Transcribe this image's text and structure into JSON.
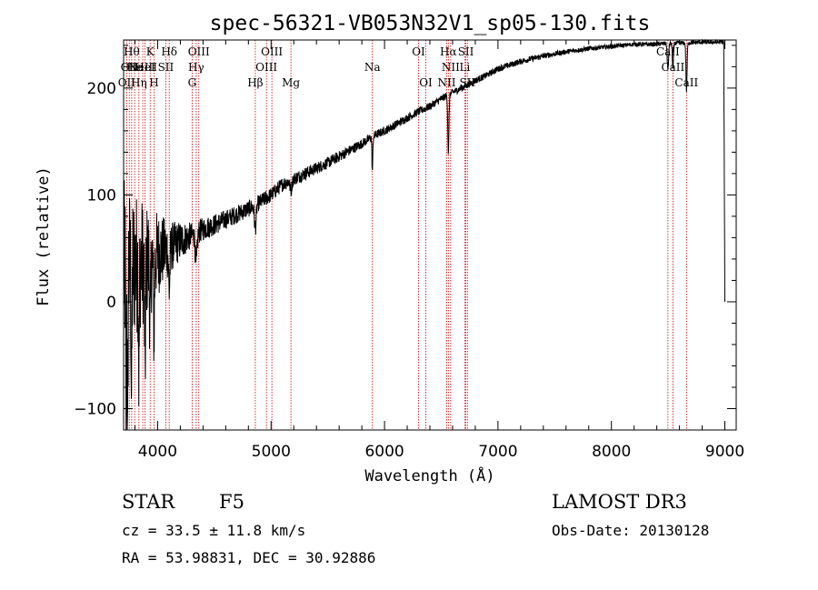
{
  "chart_data": {
    "type": "line",
    "title": "spec-56321-VB053N32V1_sp05-130.fits",
    "xlabel": "Wavelength (Å)",
    "ylabel": "Flux (relative)",
    "xlim": [
      3700,
      9100
    ],
    "ylim": [
      -120,
      245
    ],
    "x_ticks": [
      4000,
      5000,
      6000,
      7000,
      8000,
      9000
    ],
    "x_tick_labels": [
      "4000",
      "5000",
      "6000",
      "7000",
      "8000",
      "9000"
    ],
    "y_ticks": [
      -100,
      0,
      100,
      200
    ],
    "y_tick_labels": [
      "−100",
      "0",
      "100",
      "200"
    ],
    "continuum": [
      [
        3700,
        30
      ],
      [
        3800,
        35
      ],
      [
        3900,
        38
      ],
      [
        4000,
        45
      ],
      [
        4100,
        50
      ],
      [
        4200,
        57
      ],
      [
        4300,
        62
      ],
      [
        4400,
        68
      ],
      [
        4500,
        72
      ],
      [
        4600,
        77
      ],
      [
        4700,
        82
      ],
      [
        4800,
        87
      ],
      [
        4900,
        93
      ],
      [
        5000,
        100
      ],
      [
        5100,
        110
      ],
      [
        5200,
        115
      ],
      [
        5300,
        120
      ],
      [
        5400,
        125
      ],
      [
        5500,
        130
      ],
      [
        5600,
        136
      ],
      [
        5700,
        142
      ],
      [
        5800,
        148
      ],
      [
        5900,
        155
      ],
      [
        6000,
        160
      ],
      [
        6100,
        166
      ],
      [
        6200,
        172
      ],
      [
        6300,
        178
      ],
      [
        6400,
        183
      ],
      [
        6500,
        190
      ],
      [
        6600,
        196
      ],
      [
        6700,
        201
      ],
      [
        6800,
        207
      ],
      [
        6900,
        212
      ],
      [
        7000,
        218
      ],
      [
        7200,
        225
      ],
      [
        7400,
        230
      ],
      [
        7600,
        234
      ],
      [
        7800,
        237
      ],
      [
        8000,
        239
      ],
      [
        8200,
        241
      ],
      [
        8400,
        241
      ],
      [
        8500,
        242
      ],
      [
        8600,
        242
      ],
      [
        8800,
        243
      ],
      [
        8980,
        243
      ]
    ],
    "noise": [
      [
        3700,
        85
      ],
      [
        3900,
        55
      ],
      [
        4100,
        25
      ],
      [
        4300,
        12
      ],
      [
        4600,
        9
      ],
      [
        5000,
        7
      ],
      [
        6000,
        4
      ],
      [
        7000,
        3
      ],
      [
        8000,
        2
      ],
      [
        9000,
        2
      ]
    ],
    "absorption_features": [
      {
        "center": 3722,
        "depth": 180,
        "width": 3
      },
      {
        "center": 3735,
        "depth": 200,
        "width": 3
      },
      {
        "center": 3770,
        "depth": 120,
        "width": 4
      },
      {
        "center": 3835,
        "depth": 100,
        "width": 4
      },
      {
        "center": 3889,
        "depth": 90,
        "width": 5
      },
      {
        "center": 3934,
        "depth": 70,
        "width": 5
      },
      {
        "center": 3968,
        "depth": 70,
        "width": 5
      },
      {
        "center": 4102,
        "depth": 40,
        "width": 6
      },
      {
        "center": 4340,
        "depth": 30,
        "width": 8
      },
      {
        "center": 4861,
        "depth": 22,
        "width": 8
      },
      {
        "center": 5175,
        "depth": 10,
        "width": 8
      },
      {
        "center": 5893,
        "depth": 32,
        "width": 4
      },
      {
        "center": 6563,
        "depth": 55,
        "width": 5
      },
      {
        "center": 8498,
        "depth": 25,
        "width": 6
      },
      {
        "center": 8542,
        "depth": 25,
        "width": 5
      },
      {
        "center": 8662,
        "depth": 45,
        "width": 5
      }
    ],
    "edge_drop": {
      "start": 8990,
      "end": 9000,
      "to": 0
    },
    "emission_lines": [
      {
        "wave": 3727,
        "row": 2,
        "label": "OII"
      },
      {
        "wave": 3750,
        "row": 1,
        "label": "OII"
      },
      {
        "wave": 3771,
        "row": 0,
        "label": "Hθ"
      },
      {
        "wave": 3798,
        "row": 1,
        "label": "He"
      },
      {
        "wave": 3835,
        "row": 2,
        "label": "Hη"
      },
      {
        "wave": 3869,
        "row": 1,
        "label": "NeIII"
      },
      {
        "wave": 3889,
        "row": 1,
        "label": "HeI"
      },
      {
        "wave": 3934,
        "row": 0,
        "label": "K"
      },
      {
        "wave": 3968,
        "row": 2,
        "label": "H"
      },
      {
        "wave": 4072,
        "row": 1,
        "label": "SII"
      },
      {
        "wave": 4102,
        "row": 0,
        "label": "Hδ"
      },
      {
        "wave": 4304,
        "row": 2,
        "label": "G"
      },
      {
        "wave": 4340,
        "row": 1,
        "label": "Hγ"
      },
      {
        "wave": 4363,
        "row": 0,
        "label": "OIII"
      },
      {
        "wave": 4861,
        "row": 2,
        "label": "Hβ"
      },
      {
        "wave": 4959,
        "row": 1,
        "label": "OIII"
      },
      {
        "wave": 5007,
        "row": 0,
        "label": "OIII"
      },
      {
        "wave": 5175,
        "row": 2,
        "label": "Mg"
      },
      {
        "wave": 5893,
        "row": 1,
        "label": "Na"
      },
      {
        "wave": 6300,
        "row": 0,
        "label": "OI"
      },
      {
        "wave": 6364,
        "row": 2,
        "label": "OI"
      },
      {
        "wave": 6548,
        "row": 2,
        "label": "NII"
      },
      {
        "wave": 6563,
        "row": 0,
        "label": "Hα"
      },
      {
        "wave": 6583,
        "row": 1,
        "label": "NII"
      },
      {
        "wave": 6708,
        "row": 1,
        "label": "Li"
      },
      {
        "wave": 6717,
        "row": 0,
        "label": "SII"
      },
      {
        "wave": 6731,
        "row": 2,
        "label": "SII"
      },
      {
        "wave": 8498,
        "row": 0,
        "label": "CaII"
      },
      {
        "wave": 8542,
        "row": 1,
        "label": "CaII"
      },
      {
        "wave": 8662,
        "row": 2,
        "label": "CaII"
      }
    ]
  },
  "footer": {
    "object_class": "STAR",
    "subclass": "F5",
    "cz": "cz = 33.5 ± 11.8 km/s",
    "coords": "RA =  53.98831, DEC =  30.92886",
    "survey": "LAMOST DR3",
    "obs_date": "Obs-Date: 20130128"
  },
  "colors": {
    "spectrum": "#000000",
    "line_marker": "#cc0000",
    "axis": "#000000"
  }
}
